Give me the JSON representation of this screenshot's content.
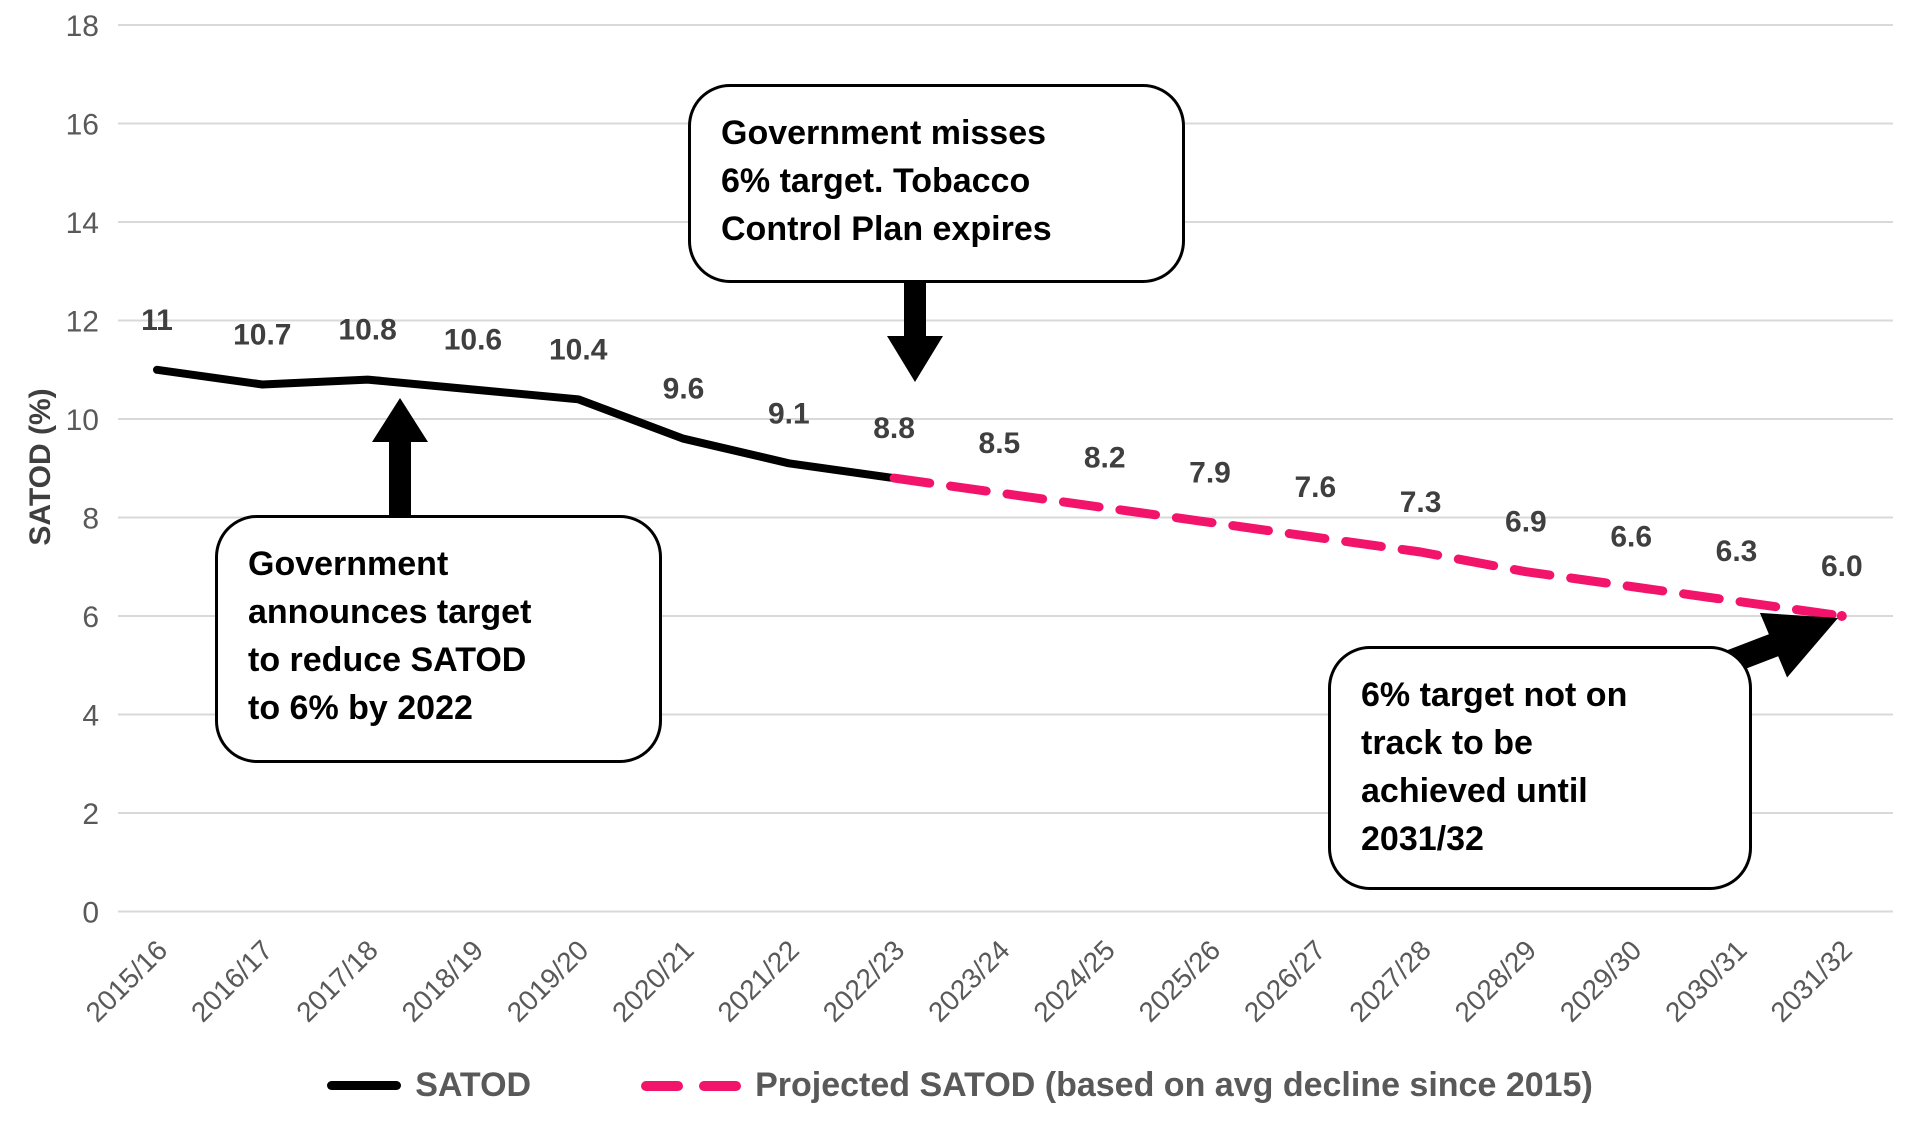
{
  "chart_data": {
    "type": "line",
    "title": "",
    "xlabel": "",
    "ylabel": "SATOD (%)",
    "ylim": [
      0,
      18
    ],
    "yticks": [
      0,
      2,
      4,
      6,
      8,
      10,
      12,
      14,
      16,
      18
    ],
    "grid": true,
    "legend_position": "bottom",
    "categories": [
      "2015/16",
      "2016/17",
      "2017/18",
      "2018/19",
      "2019/20",
      "2020/21",
      "2021/22",
      "2022/23",
      "2023/24",
      "2024/25",
      "2025/26",
      "2026/27",
      "2027/28",
      "2028/29",
      "2029/30",
      "2030/31",
      "2031/32"
    ],
    "data_labels": [
      "11",
      "10.7",
      "10.8",
      "10.6",
      "10.4",
      "9.6",
      "9.1",
      "8.8",
      "8.5",
      "8.2",
      "7.9",
      "7.6",
      "7.3",
      "6.9",
      "6.6",
      "6.3",
      "6.0"
    ],
    "series": [
      {
        "name": "SATOD",
        "style": "solid",
        "color": "#000000",
        "values": [
          11,
          10.7,
          10.8,
          10.6,
          10.4,
          9.6,
          9.1,
          8.8,
          null,
          null,
          null,
          null,
          null,
          null,
          null,
          null,
          null
        ]
      },
      {
        "name": "Projected SATOD (based on avg decline since 2015)",
        "style": "dashed",
        "color": "#F2146B",
        "values": [
          null,
          null,
          null,
          null,
          null,
          null,
          null,
          8.8,
          8.5,
          8.2,
          7.9,
          7.6,
          7.3,
          6.9,
          6.6,
          6.3,
          6.0
        ]
      }
    ],
    "annotations": [
      {
        "id": "target-announced",
        "lines": [
          "Government",
          "announces target",
          "to reduce SATOD",
          "to 6% by 2022"
        ]
      },
      {
        "id": "target-missed",
        "lines": [
          "Government misses",
          "6% target. Tobacco",
          "Control Plan expires"
        ]
      },
      {
        "id": "not-on-track",
        "lines": [
          "6% target not on",
          "track to be",
          "achieved until",
          "2031/32"
        ]
      }
    ]
  },
  "colors": {
    "satod_line": "#000000",
    "projected_line": "#F2146B",
    "gridline": "#D9D9D9",
    "axis_text": "#595959",
    "data_label_text": "#3F3F3F"
  }
}
